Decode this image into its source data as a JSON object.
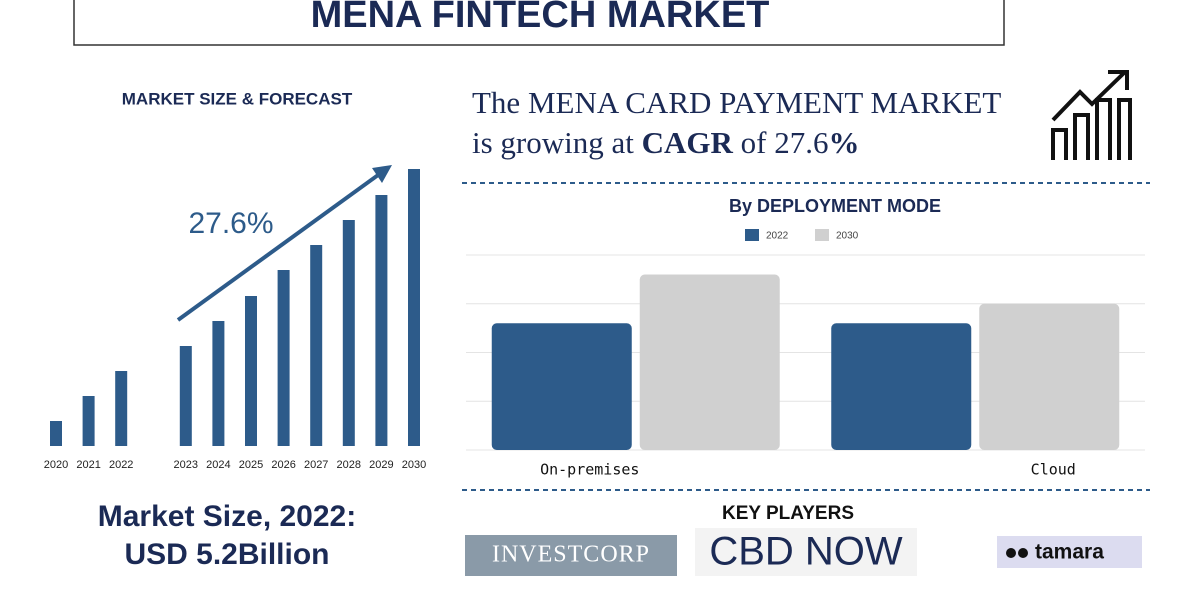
{
  "title": "MENA FINTECH MARKET",
  "headline": {
    "line1": "The MENA CARD PAYMENT MARKET",
    "line2_start": "is growing at ",
    "line2_bold": "CAGR",
    "line2_mid": " of 27.6",
    "line2_end": "%"
  },
  "market_size": {
    "line1": "Market Size, 2022:",
    "line2": "USD 5.2Billion"
  },
  "key_players": {
    "title": "KEY PLAYERS",
    "players": [
      "INVESTCORP",
      "CBD NOW",
      "tamara"
    ]
  },
  "chart_data": [
    {
      "type": "bar",
      "title": "MARKET SIZE & FORECAST",
      "annotation": "27.6%",
      "categories": [
        "2020",
        "2021",
        "2022",
        "2023",
        "2024",
        "2025",
        "2026",
        "2027",
        "2028",
        "2029",
        "2030"
      ],
      "values": [
        25,
        50,
        75,
        100,
        125,
        150,
        176,
        201,
        226,
        251,
        277
      ],
      "color": "#2d5b8a",
      "ylim": [
        0,
        280
      ]
    },
    {
      "type": "grouped_bar",
      "title": "By DEPLOYMENT MODE",
      "categories": [
        "On-premises",
        "Cloud"
      ],
      "series": [
        {
          "name": "2022",
          "color": "#2d5b8a",
          "values": [
            130,
            130
          ]
        },
        {
          "name": "2030",
          "color": "#d0d0d0",
          "values": [
            180,
            150
          ]
        }
      ],
      "ylim": [
        0,
        200
      ],
      "grid": true
    }
  ]
}
